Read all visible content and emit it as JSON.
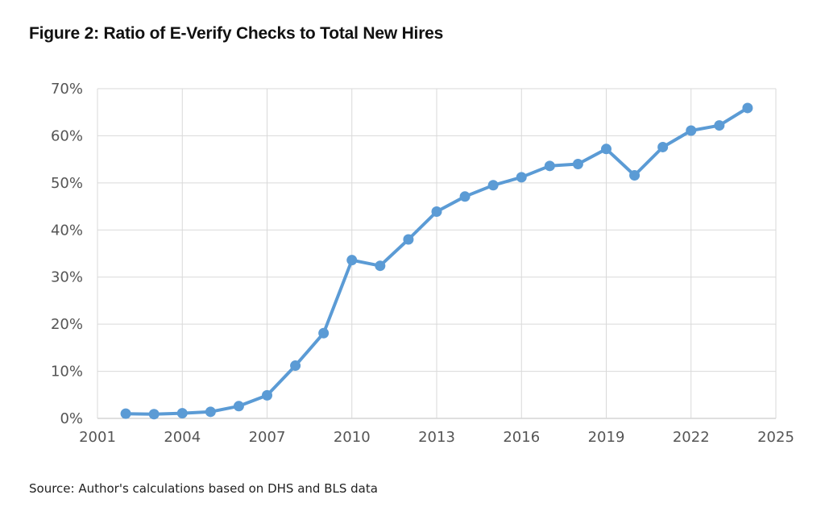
{
  "figure": {
    "title": "Figure 2: Ratio of E-Verify Checks to Total New Hires",
    "source": "Source: Author's calculations based on DHS and BLS data"
  },
  "chart_data": {
    "type": "line",
    "title": "Figure 2: Ratio of E-Verify Checks to Total New Hires",
    "xlabel": "",
    "ylabel": "",
    "xlim": [
      2001,
      2025
    ],
    "ylim": [
      0,
      70
    ],
    "x_ticks": [
      2001,
      2004,
      2007,
      2010,
      2013,
      2016,
      2019,
      2022,
      2025
    ],
    "y_ticks": [
      0,
      10,
      20,
      30,
      40,
      50,
      60,
      70
    ],
    "y_tick_labels": [
      "0%",
      "10%",
      "20%",
      "30%",
      "40%",
      "50%",
      "60%",
      "70%"
    ],
    "grid": true,
    "legend": "none",
    "series": [
      {
        "color": "#5b9bd5",
        "x": [
          2002,
          2003,
          2004,
          2005,
          2006,
          2007,
          2008,
          2009,
          2010,
          2011,
          2012,
          2013,
          2014,
          2015,
          2016,
          2017,
          2018,
          2019,
          2020,
          2021,
          2022,
          2023,
          2024
        ],
        "y": [
          1.0,
          0.9,
          1.1,
          1.4,
          2.6,
          4.9,
          11.2,
          18.1,
          33.6,
          32.4,
          38.0,
          43.9,
          47.1,
          49.5,
          51.2,
          53.6,
          54.0,
          57.2,
          51.6,
          57.6,
          61.1,
          62.2,
          65.9
        ]
      }
    ]
  }
}
